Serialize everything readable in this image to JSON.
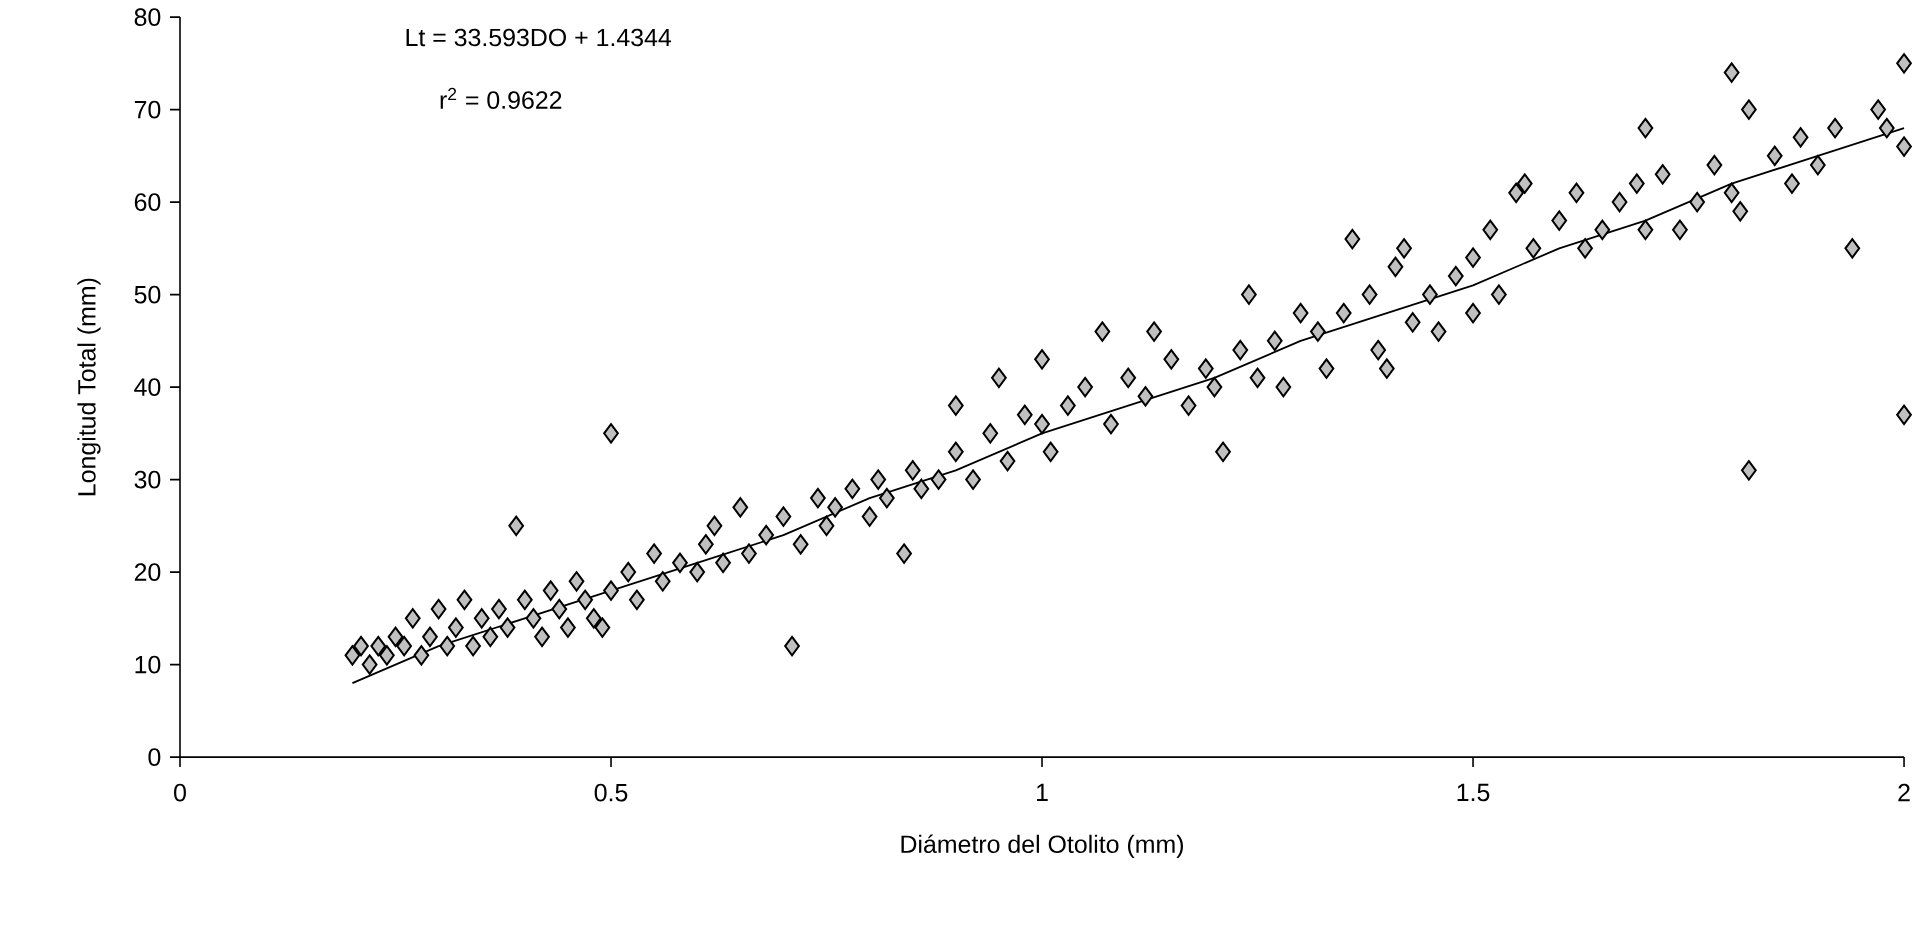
{
  "chart_data": {
    "type": "scatter",
    "xlabel": "Diámetro del Otolito (mm)",
    "ylabel": "Longitud Total (mm)",
    "annotations": [
      "Lt = 33.593DO + 1.4344",
      "r$^{2}$ = 0.9622"
    ],
    "xlim": [
      0,
      2
    ],
    "ylim": [
      0,
      80
    ],
    "xticks": [
      0,
      0.5,
      1,
      1.5,
      2
    ],
    "yticks": [
      0,
      10,
      20,
      30,
      40,
      50,
      60,
      70,
      80
    ],
    "series": [
      {
        "marker": "diamond",
        "color": "#c0c0c0",
        "x": [
          0.2,
          0.21,
          0.22,
          0.23,
          0.24,
          0.25,
          0.26,
          0.27,
          0.28,
          0.29,
          0.3,
          0.31,
          0.32,
          0.33,
          0.34,
          0.35,
          0.36,
          0.37,
          0.38,
          0.39,
          0.4,
          0.41,
          0.42,
          0.43,
          0.44,
          0.45,
          0.46,
          0.47,
          0.48,
          0.49,
          0.5,
          0.5,
          0.52,
          0.53,
          0.55,
          0.56,
          0.58,
          0.6,
          0.61,
          0.62,
          0.63,
          0.65,
          0.66,
          0.68,
          0.7,
          0.71,
          0.72,
          0.74,
          0.75,
          0.76,
          0.78,
          0.8,
          0.81,
          0.82,
          0.84,
          0.85,
          0.86,
          0.88,
          0.9,
          0.9,
          0.92,
          0.94,
          0.95,
          0.96,
          0.98,
          1.0,
          1.0,
          1.01,
          1.03,
          1.05,
          1.07,
          1.08,
          1.1,
          1.12,
          1.13,
          1.15,
          1.17,
          1.19,
          1.2,
          1.21,
          1.23,
          1.24,
          1.25,
          1.27,
          1.28,
          1.3,
          1.32,
          1.33,
          1.35,
          1.36,
          1.38,
          1.39,
          1.4,
          1.41,
          1.42,
          1.43,
          1.45,
          1.46,
          1.48,
          1.5,
          1.5,
          1.52,
          1.53,
          1.55,
          1.56,
          1.57,
          1.6,
          1.62,
          1.63,
          1.65,
          1.67,
          1.69,
          1.7,
          1.7,
          1.72,
          1.74,
          1.76,
          1.78,
          1.8,
          1.8,
          1.81,
          1.82,
          1.82,
          1.85,
          1.87,
          1.88,
          1.9,
          1.92,
          1.94,
          1.97,
          1.98,
          2.0,
          2.0,
          2.0
        ],
        "values": [
          11,
          12,
          10,
          12,
          11,
          13,
          12,
          15,
          11,
          13,
          16,
          12,
          14,
          17,
          12,
          15,
          13,
          16,
          14,
          25,
          17,
          15,
          13,
          18,
          16,
          14,
          19,
          17,
          15,
          14,
          35,
          18,
          20,
          17,
          22,
          19,
          21,
          20,
          23,
          25,
          21,
          27,
          22,
          24,
          26,
          12,
          23,
          28,
          25,
          27,
          29,
          26,
          30,
          28,
          22,
          31,
          29,
          30,
          33,
          38,
          30,
          35,
          41,
          32,
          37,
          36,
          43,
          33,
          38,
          40,
          46,
          36,
          41,
          39,
          46,
          43,
          38,
          42,
          40,
          33,
          44,
          50,
          41,
          45,
          40,
          48,
          46,
          42,
          48,
          56,
          50,
          44,
          42,
          53,
          55,
          47,
          50,
          46,
          52,
          54,
          48,
          57,
          50,
          61,
          62,
          55,
          58,
          61,
          55,
          57,
          60,
          62,
          68,
          57,
          63,
          57,
          60,
          64,
          74,
          61,
          59,
          31,
          70,
          65,
          62,
          67,
          64,
          68,
          55,
          70,
          68,
          75,
          66,
          37
        ]
      },
      {
        "type": "line",
        "marker": "none",
        "color": "#000000",
        "x": [
          0.2,
          0.3,
          0.4,
          0.5,
          0.6,
          0.7,
          0.8,
          0.9,
          1.0,
          1.1,
          1.2,
          1.3,
          1.4,
          1.5,
          1.6,
          1.7,
          1.8,
          1.9,
          2.0
        ],
        "values": [
          8,
          12,
          15,
          18,
          21,
          24,
          28,
          31,
          35,
          38,
          41,
          45,
          48,
          51,
          55,
          58,
          62,
          65,
          68
        ]
      }
    ]
  }
}
